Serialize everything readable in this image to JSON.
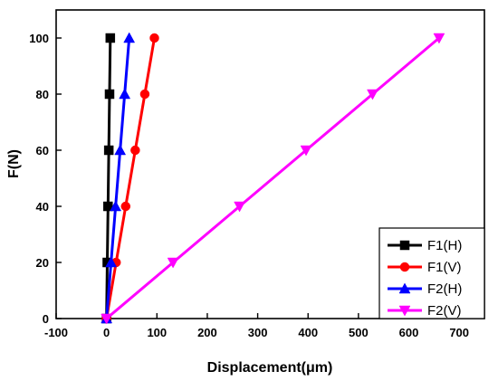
{
  "chart_data": {
    "type": "line",
    "xlabel": "Displacement(μm)",
    "ylabel": "F(N)",
    "xlim": [
      -100,
      750
    ],
    "ylim": [
      0,
      110
    ],
    "xticks": [
      -100,
      0,
      100,
      200,
      300,
      400,
      500,
      600,
      700
    ],
    "yticks": [
      0,
      20,
      40,
      60,
      80,
      100
    ],
    "legend_position": "bottom-right",
    "grid": false,
    "series": [
      {
        "name": "F1(H)",
        "color": "#000000",
        "marker": "square",
        "x": [
          0,
          1.5,
          3,
          4.5,
          6,
          7.5
        ],
        "y": [
          0,
          20,
          40,
          60,
          80,
          100
        ]
      },
      {
        "name": "F1(V)",
        "color": "#ff0000",
        "marker": "circle",
        "x": [
          0,
          19,
          38,
          57,
          76,
          95
        ],
        "y": [
          0,
          20,
          40,
          60,
          80,
          100
        ]
      },
      {
        "name": "F2(H)",
        "color": "#0000ff",
        "marker": "triangle-up",
        "x": [
          0,
          9,
          18,
          27,
          36,
          45
        ],
        "y": [
          0,
          20,
          40,
          60,
          80,
          100
        ]
      },
      {
        "name": "F2(V)",
        "color": "#ff00ff",
        "marker": "triangle-down",
        "x": [
          0,
          132,
          264,
          396,
          528,
          660
        ],
        "y": [
          0,
          20,
          40,
          60,
          80,
          100
        ]
      }
    ]
  }
}
